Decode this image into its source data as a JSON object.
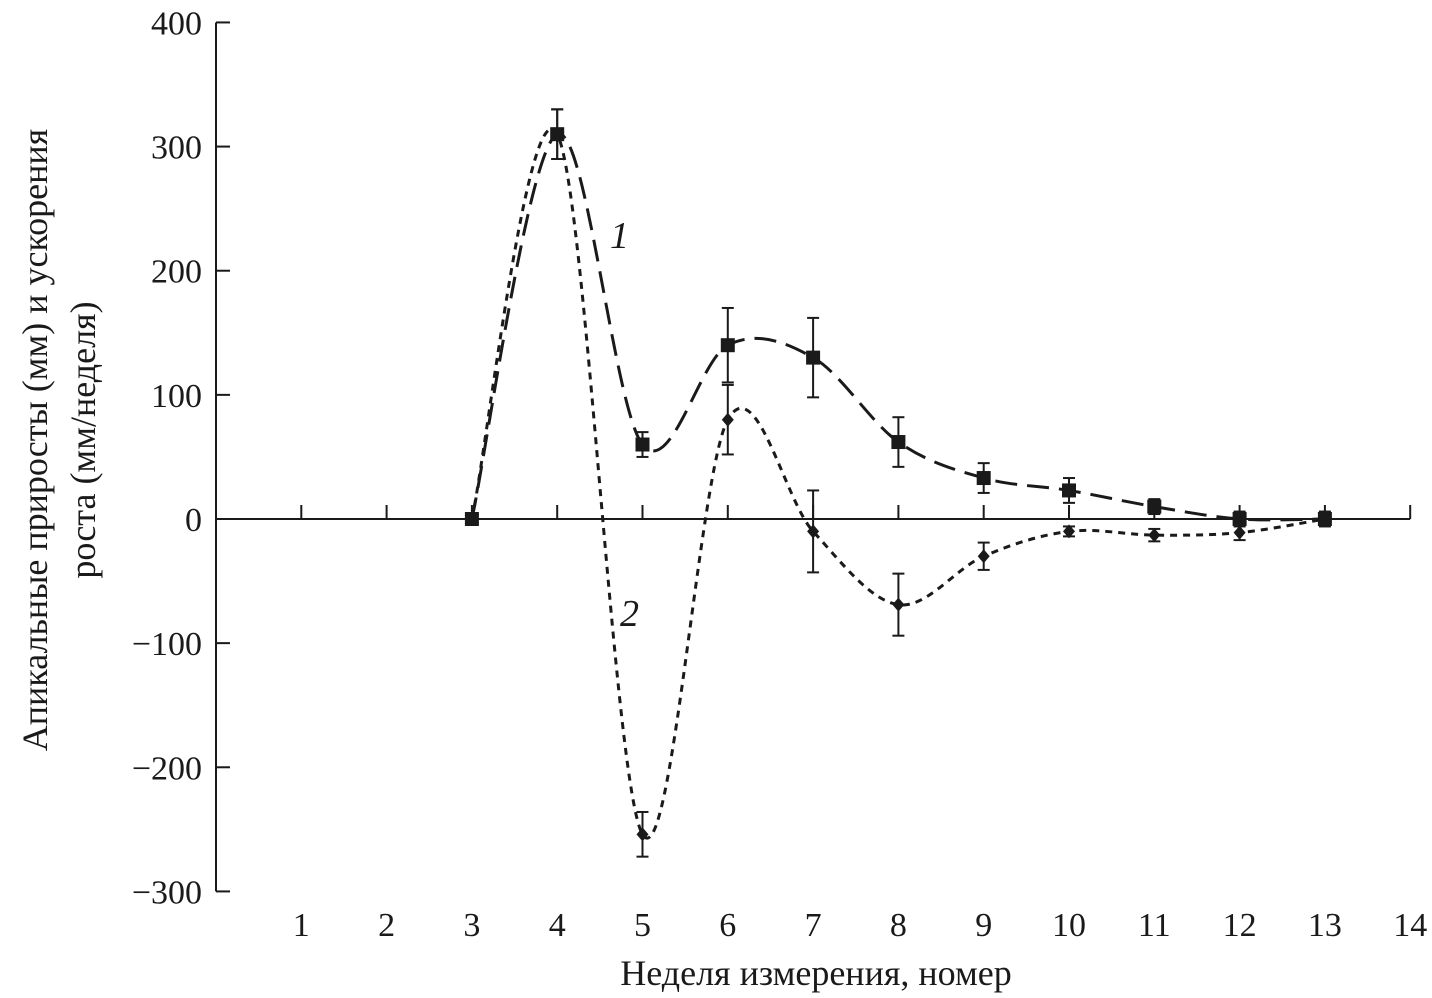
{
  "chart_data": {
    "type": "line",
    "title": "",
    "xlabel": "Неделя измерения, номер",
    "ylabel_lines": [
      "Апикальные приросты (мм) и ускорения",
      "роста (мм/неделя)"
    ],
    "xlim": [
      0,
      14
    ],
    "ylim": [
      -300,
      400
    ],
    "x_ticks": [
      1,
      2,
      3,
      4,
      5,
      6,
      7,
      8,
      9,
      10,
      11,
      12,
      13,
      14
    ],
    "y_ticks": [
      400,
      300,
      200,
      100,
      0,
      -100,
      -200,
      -300
    ],
    "y_tick_labels": [
      "400",
      "300",
      "200",
      "100",
      "0",
      "−100",
      "−200",
      "−300"
    ],
    "grid": false,
    "series": [
      {
        "name": "1",
        "marker": "square",
        "line_style": "long-dash",
        "x": [
          3,
          4,
          5,
          6,
          7,
          8,
          9,
          10,
          11,
          12,
          13
        ],
        "y": [
          0,
          310,
          60,
          140,
          130,
          62,
          33,
          23,
          10,
          0,
          0
        ],
        "error": [
          0,
          20,
          10,
          30,
          32,
          20,
          12,
          10,
          6,
          6,
          6
        ]
      },
      {
        "name": "2",
        "marker": "diamond",
        "line_style": "short-dash",
        "x": [
          3,
          4,
          5,
          6,
          7,
          8,
          9,
          10,
          11,
          12,
          13
        ],
        "y": [
          0,
          310,
          -254,
          80,
          -10,
          -69,
          -30,
          -10,
          -13,
          -11,
          0
        ],
        "error": [
          0,
          20,
          18,
          28,
          33,
          25,
          11,
          4,
          5,
          6,
          4
        ]
      }
    ],
    "curve_labels": [
      "1",
      "2"
    ]
  }
}
